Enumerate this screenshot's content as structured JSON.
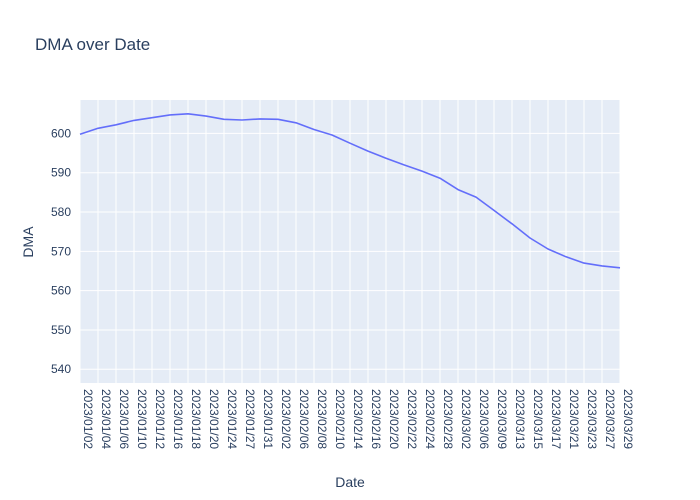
{
  "chart_data": {
    "type": "line",
    "title": "DMA over Date",
    "xlabel": "Date",
    "ylabel": "DMA",
    "x_tick_labels": [
      "2023/01/02",
      "2023/01/04",
      "2023/01/06",
      "2023/01/10",
      "2023/01/12",
      "2023/01/16",
      "2023/01/18",
      "2023/01/20",
      "2023/01/24",
      "2023/01/27",
      "2023/01/31",
      "2023/02/02",
      "2023/02/06",
      "2023/02/08",
      "2023/02/10",
      "2023/02/14",
      "2023/02/16",
      "2023/02/20",
      "2023/02/22",
      "2023/02/24",
      "2023/02/28",
      "2023/03/02",
      "2023/03/06",
      "2023/03/09",
      "2023/03/13",
      "2023/03/15",
      "2023/03/17",
      "2023/03/21",
      "2023/03/23",
      "2023/03/27",
      "2023/03/29"
    ],
    "y_ticks": [
      540,
      550,
      560,
      570,
      580,
      590,
      600
    ],
    "ylim": [
      536.5,
      608.5
    ],
    "grid": true,
    "series": [
      {
        "color": "#636efa",
        "x": [
          "2023/01/02",
          "2023/01/04",
          "2023/01/06",
          "2023/01/10",
          "2023/01/12",
          "2023/01/16",
          "2023/01/18",
          "2023/01/20",
          "2023/01/24",
          "2023/01/27",
          "2023/01/31",
          "2023/02/02",
          "2023/02/06",
          "2023/02/08",
          "2023/02/10",
          "2023/02/14",
          "2023/02/16",
          "2023/02/20",
          "2023/02/22",
          "2023/02/24",
          "2023/02/28",
          "2023/03/02",
          "2023/03/06",
          "2023/03/09",
          "2023/03/13",
          "2023/03/15",
          "2023/03/17",
          "2023/03/21",
          "2023/03/23",
          "2023/03/27",
          "2023/03/29"
        ],
        "y": [
          599.8,
          601.3,
          602.2,
          603.3,
          604.0,
          604.7,
          605.0,
          604.4,
          603.6,
          603.4,
          603.7,
          603.6,
          602.7,
          601.0,
          599.6,
          597.5,
          595.5,
          593.7,
          592.0,
          590.4,
          588.6,
          585.7,
          583.8,
          580.4,
          577.0,
          573.4,
          570.6,
          568.6,
          567.0,
          566.3,
          565.8
        ]
      }
    ]
  }
}
